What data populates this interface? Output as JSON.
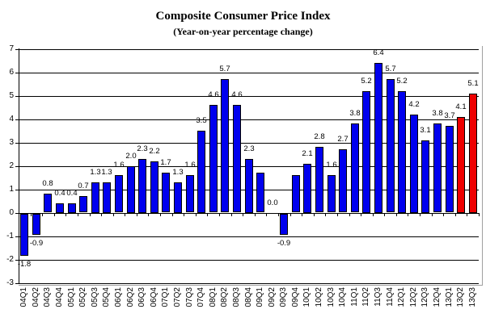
{
  "chart_data": {
    "type": "bar",
    "title": "Composite Consumer Price Index",
    "subtitle": "(Year-on-year percentage change)",
    "categories": [
      "04Q1",
      "04Q2",
      "04Q3",
      "04Q4",
      "05Q1",
      "05Q2",
      "05Q3",
      "05Q4",
      "06Q1",
      "06Q2",
      "06Q3",
      "06Q4",
      "07Q1",
      "07Q2",
      "07Q3",
      "07Q4",
      "08Q1",
      "08Q2",
      "08Q3",
      "08Q4",
      "09Q1",
      "09Q2",
      "09Q3",
      "09Q4",
      "10Q1",
      "10Q2",
      "10Q3",
      "10Q4",
      "11Q1",
      "11Q2",
      "11Q3",
      "11Q4",
      "12Q1",
      "12Q2",
      "12Q3",
      "12Q4",
      "13Q1",
      "13Q2",
      "13Q3"
    ],
    "values": [
      -1.8,
      -0.9,
      0.8,
      0.4,
      0.4,
      0.7,
      1.3,
      1.3,
      1.6,
      2.0,
      2.3,
      2.2,
      1.7,
      1.3,
      1.6,
      3.5,
      4.6,
      5.7,
      4.6,
      2.3,
      1.7,
      0.0,
      -0.9,
      1.6,
      2.1,
      2.8,
      1.6,
      2.7,
      3.8,
      5.2,
      6.4,
      5.7,
      5.2,
      4.2,
      3.1,
      3.8,
      3.7,
      4.1,
      5.1
    ],
    "bar_labels": [
      "-1.8",
      "-0.9",
      "0.8",
      "0.4",
      "0.4",
      "0.7",
      "1.3",
      "1.3",
      "1.6",
      "2.0",
      "2.3",
      "2.2",
      "1.7",
      "1.3",
      "1.6",
      "3.5",
      "4.6",
      "5.7",
      "4.6",
      "2.3",
      "",
      "0.0",
      "-0.9",
      "",
      "2.1",
      "2.8",
      "1.6",
      "2.7",
      "3.8",
      "5.2",
      "6.4",
      "5.7",
      "5.2",
      "4.2",
      "3.1",
      "3.8",
      "3.7",
      "4.1",
      "5.1"
    ],
    "highlight_indices": [
      37,
      38
    ],
    "yticks": [
      7,
      6,
      5,
      4,
      3,
      2,
      1,
      0,
      -1,
      -2,
      -3
    ],
    "ylim": [
      -3,
      7
    ],
    "grid": "horizontal",
    "legend": "none",
    "colors": {
      "bar": "#0000EE",
      "highlight": "#EE0000",
      "bar_border": "#000000",
      "gridline": "#000000",
      "axis": "#000000",
      "chart_border": "#A0A0A0",
      "background": "#FFFFFF"
    }
  }
}
